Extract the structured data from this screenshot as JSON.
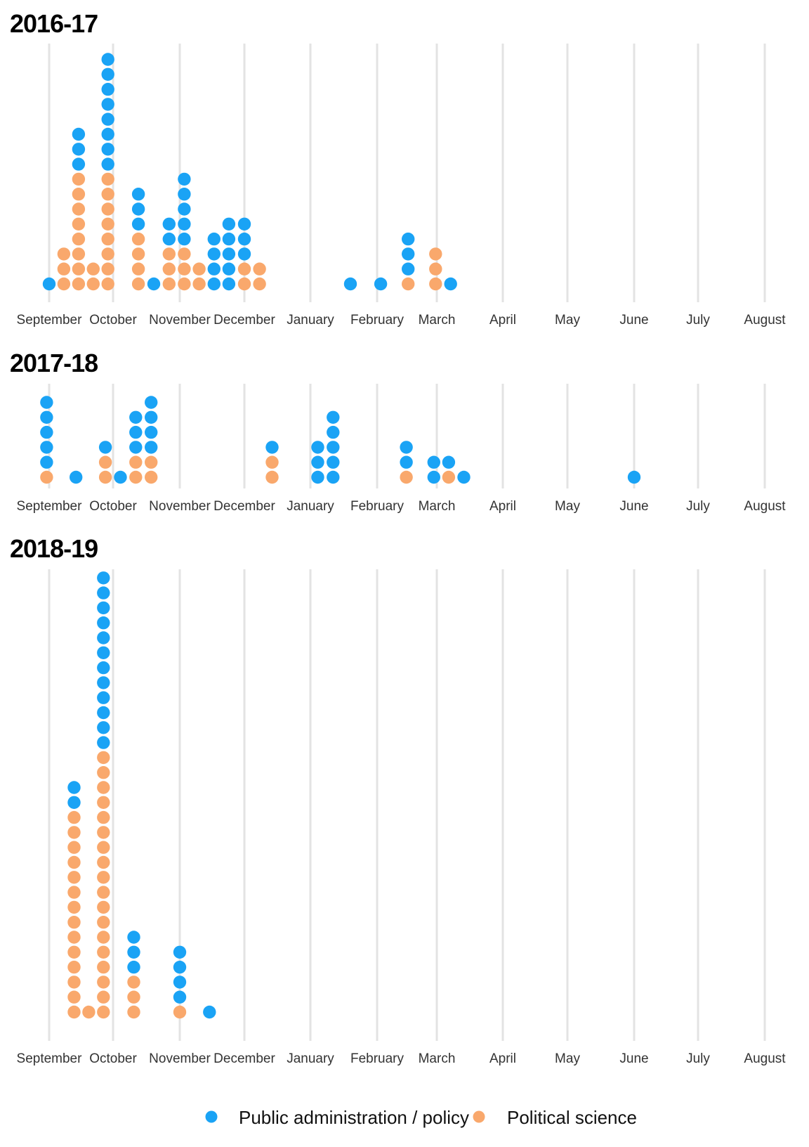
{
  "colors": {
    "public_admin": "#1aa3f5",
    "political_science": "#f9a86c",
    "grid": "#e3e3e3"
  },
  "chart_data": {
    "type": "dot-histogram",
    "months": [
      "September",
      "October",
      "November",
      "December",
      "January",
      "February",
      "March",
      "April",
      "May",
      "June",
      "July",
      "August"
    ],
    "legend": {
      "position": "bottom",
      "entries": [
        {
          "key": "public_admin",
          "label": "Public administration / policy"
        },
        {
          "key": "political_science",
          "label": "Political science"
        }
      ]
    },
    "panels": [
      {
        "title": "2016-17",
        "columns": [
          {
            "month": 0.0,
            "political_science": 0,
            "public_admin": 1
          },
          {
            "month": 0.23,
            "political_science": 3,
            "public_admin": 0
          },
          {
            "month": 0.46,
            "political_science": 8,
            "public_admin": 3
          },
          {
            "month": 0.69,
            "political_science": 2,
            "public_admin": 0
          },
          {
            "month": 0.92,
            "political_science": 8,
            "public_admin": 8
          },
          {
            "month": 1.38,
            "political_science": 4,
            "public_admin": 3
          },
          {
            "month": 1.61,
            "political_science": 0,
            "public_admin": 1
          },
          {
            "month": 1.84,
            "political_science": 3,
            "public_admin": 2
          },
          {
            "month": 2.07,
            "political_science": 3,
            "public_admin": 5
          },
          {
            "month": 2.3,
            "political_science": 2,
            "public_admin": 0
          },
          {
            "month": 2.53,
            "political_science": 0,
            "public_admin": 4
          },
          {
            "month": 2.76,
            "political_science": 0,
            "public_admin": 5
          },
          {
            "month": 3.0,
            "political_science": 2,
            "public_admin": 3
          },
          {
            "month": 3.23,
            "political_science": 2,
            "public_admin": 0
          },
          {
            "month": 4.6,
            "political_science": 0,
            "public_admin": 1
          },
          {
            "month": 5.06,
            "political_science": 0,
            "public_admin": 1
          },
          {
            "month": 5.52,
            "political_science": 1,
            "public_admin": 3
          },
          {
            "month": 5.98,
            "political_science": 3,
            "public_admin": 0
          },
          {
            "month": 6.21,
            "political_science": 0,
            "public_admin": 1
          }
        ]
      },
      {
        "title": "2017-18",
        "columns": [
          {
            "month": -0.04,
            "political_science": 1,
            "public_admin": 5
          },
          {
            "month": 0.42,
            "political_science": 0,
            "public_admin": 1
          },
          {
            "month": 0.88,
            "political_science": 2,
            "public_admin": 1
          },
          {
            "month": 1.11,
            "political_science": 0,
            "public_admin": 1
          },
          {
            "month": 1.34,
            "political_science": 2,
            "public_admin": 3
          },
          {
            "month": 1.57,
            "political_science": 2,
            "public_admin": 4
          },
          {
            "month": 3.42,
            "political_science": 2,
            "public_admin": 1
          },
          {
            "month": 4.11,
            "political_science": 0,
            "public_admin": 3
          },
          {
            "month": 4.34,
            "political_science": 0,
            "public_admin": 5
          },
          {
            "month": 5.49,
            "political_science": 1,
            "public_admin": 2
          },
          {
            "month": 5.95,
            "political_science": 0,
            "public_admin": 2
          },
          {
            "month": 6.18,
            "political_science": 1,
            "public_admin": 1
          },
          {
            "month": 6.41,
            "political_science": 0,
            "public_admin": 1
          },
          {
            "month": 9.0,
            "political_science": 0,
            "public_admin": 1
          }
        ]
      },
      {
        "title": "2018-19",
        "columns": [
          {
            "month": 0.39,
            "political_science": 14,
            "public_admin": 2
          },
          {
            "month": 0.62,
            "political_science": 1,
            "public_admin": 0
          },
          {
            "month": 0.85,
            "political_science": 18,
            "public_admin": 12
          },
          {
            "month": 1.31,
            "political_science": 3,
            "public_admin": 3
          },
          {
            "month": 2.0,
            "political_science": 1,
            "public_admin": 4
          },
          {
            "month": 2.46,
            "political_science": 0,
            "public_admin": 1
          }
        ]
      }
    ]
  }
}
